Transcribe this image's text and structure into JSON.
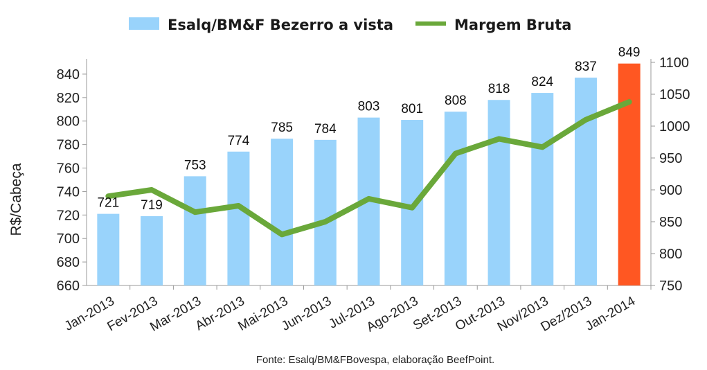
{
  "chart_data": {
    "type": "bar",
    "categories": [
      "Jan-2013",
      "Fev-2013",
      "Mar-2013",
      "Abr-2013",
      "Mai-2013",
      "Jun-2013",
      "Jul-2013",
      "Ago-2013",
      "Set-2013",
      "Out-2013",
      "Nov/2013",
      "Dez/2013",
      "Jan-2014"
    ],
    "series": [
      {
        "name": "Esalq/BM&F Bezerro a vista",
        "type": "bar",
        "axis": "left",
        "color": "#99d3fb",
        "highlight_color": "#ff5722",
        "highlight_index": 12,
        "values": [
          721,
          719,
          753,
          774,
          785,
          784,
          803,
          801,
          808,
          818,
          824,
          837,
          849
        ]
      },
      {
        "name": "Margem Bruta",
        "type": "line",
        "axis": "right",
        "color": "#6aa83a",
        "values": [
          890,
          900,
          865,
          875,
          830,
          850,
          886,
          872,
          957,
          980,
          967,
          1010,
          1038
        ]
      }
    ],
    "data_labels": [
      "721",
      "719",
      "753",
      "774",
      "785",
      "784",
      "803",
      "801",
      "808",
      "818",
      "824",
      "837",
      "849"
    ],
    "ylabel": "R$/Cabeça",
    "ylim": [
      660,
      850
    ],
    "yticks": [
      660,
      680,
      700,
      720,
      740,
      760,
      780,
      800,
      820,
      840
    ],
    "y2lim": [
      750,
      1100
    ],
    "y2ticks": [
      750,
      800,
      850,
      900,
      950,
      1000,
      1050,
      1100
    ],
    "legend_position": "top-center",
    "grid": false,
    "source_note": "Fonte: Esalq/BM&FBovespa, elaboração BeefPoint."
  }
}
